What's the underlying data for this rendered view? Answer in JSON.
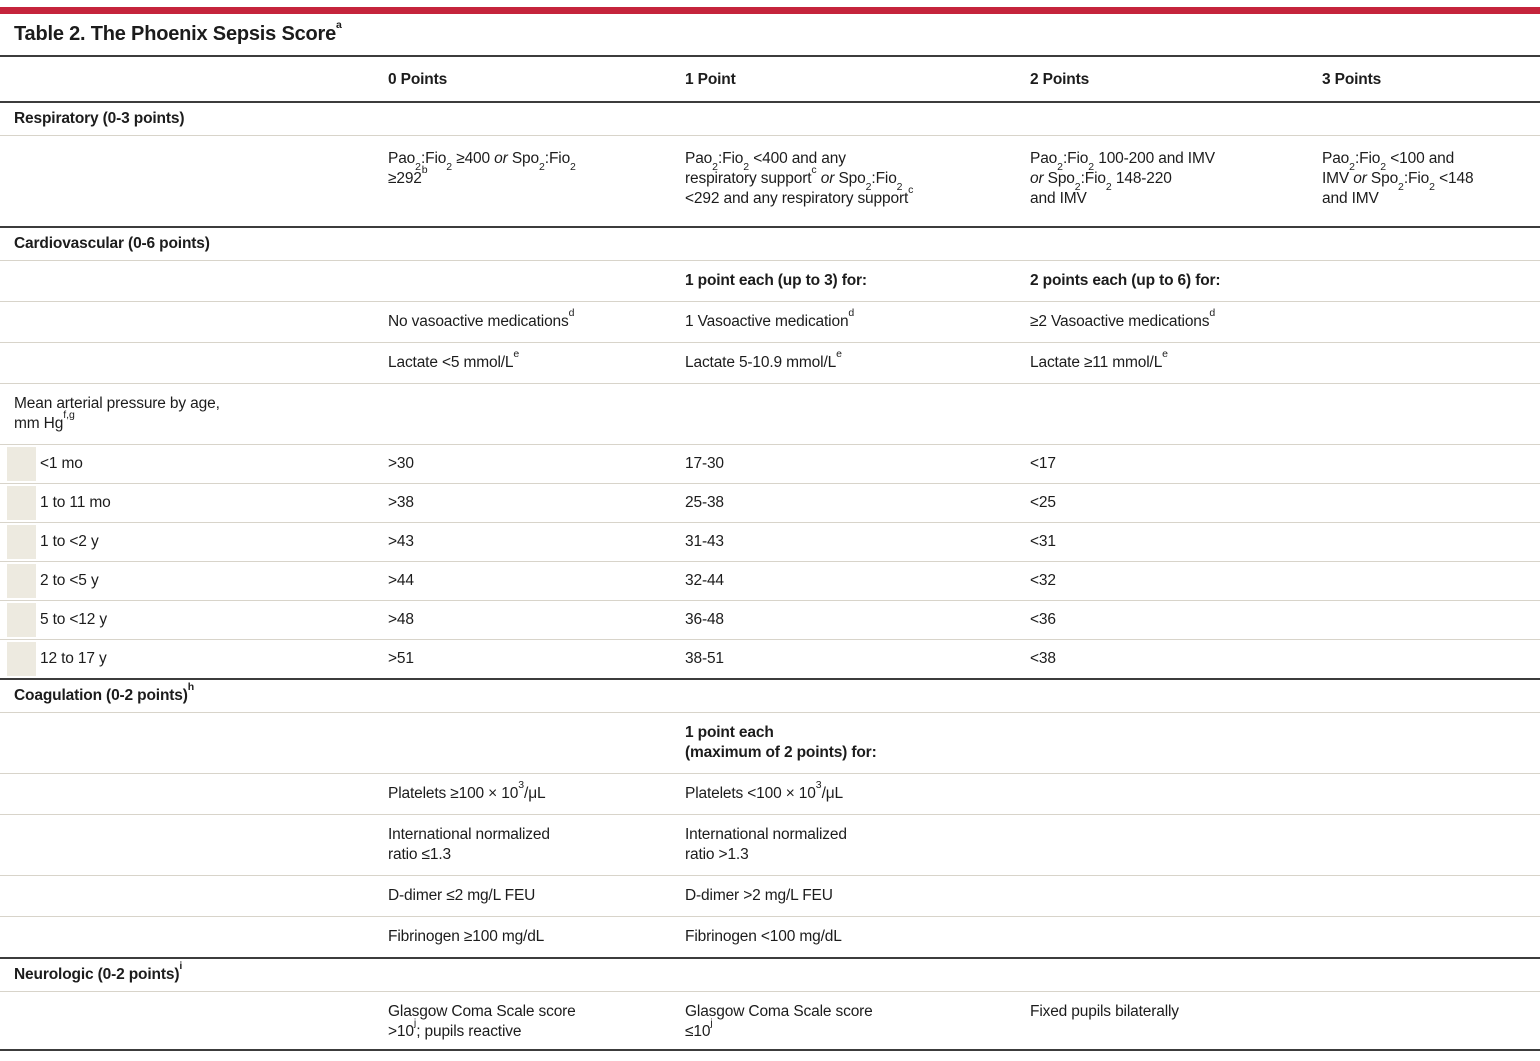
{
  "title": "Table 2. The Phoenix Sepsis Score^a^",
  "colors": {
    "accent_red": "#c5243c",
    "rule_dark": "#3c3c3c",
    "rule_light": "#d8d4ca",
    "indent_beige": "#edeae0",
    "text": "#1c1c1c"
  },
  "table": {
    "columns": [
      "",
      "0 Points",
      "1 Point",
      "2 Points",
      "3 Points"
    ],
    "rows": [
      {
        "label": "Respiratory (0-3 points)"
      },
      {
        "cells": [
          "",
          "Pao~2~:Fio~2~ ≥400 _or_ Spo~2~:Fio~2~|≥292^b^",
          "Pao~2~:Fio~2~ <400 and any|respiratory support^c^ _or_ Spo~2~:Fio~2~|<292 and any respiratory support^c^",
          "Pao~2~:Fio~2~ 100-200 and IMV|_or_ Spo~2~:Fio~2~ 148-220|and IMV",
          "Pao~2~:Fio~2~ <100 and|IMV _or_ Spo~2~:Fio~2~ <148|and IMV"
        ]
      },
      {
        "label": "Cardiovascular (0-6 points)"
      },
      {
        "cells": [
          "",
          "",
          "1 point each (up to 3) for:",
          "2 points each (up to 6) for:",
          ""
        ]
      },
      {
        "cells": [
          "",
          "No vasoactive medications^d^",
          "1 Vasoactive medication^d^",
          "≥2 Vasoactive medications^d^",
          ""
        ]
      },
      {
        "cells": [
          "",
          "Lactate <5 mmol/L^e^",
          "Lactate 5-10.9 mmol/L^e^",
          "Lactate ≥11 mmol/L^e^",
          ""
        ]
      },
      {
        "cells": [
          "Mean arterial pressure by age,|mm Hg^f,g^",
          "",
          "",
          "",
          ""
        ]
      },
      {
        "cells": [
          "<1 mo",
          ">30",
          "17-30",
          "<17",
          ""
        ]
      },
      {
        "cells": [
          "1 to 11 mo",
          ">38",
          "25-38",
          "<25",
          ""
        ]
      },
      {
        "cells": [
          "1 to <2 y",
          ">43",
          "31-43",
          "<31",
          ""
        ]
      },
      {
        "cells": [
          "2 to <5 y",
          ">44",
          "32-44",
          "<32",
          ""
        ]
      },
      {
        "cells": [
          "5 to <12 y",
          ">48",
          "36-48",
          "<36",
          ""
        ]
      },
      {
        "cells": [
          "12 to 17 y",
          ">51",
          "38-51",
          "<38",
          ""
        ]
      },
      {
        "label": "Coagulation (0-2 points)^h^"
      },
      {
        "cells": [
          "",
          "",
          "1 point each|(maximum of 2 points) for:",
          "",
          ""
        ]
      },
      {
        "cells": [
          "",
          "Platelets ≥100 × 10^3^/μL",
          "Platelets <100 × 10^3^/μL",
          "",
          ""
        ]
      },
      {
        "cells": [
          "",
          "International normalized|ratio ≤1.3",
          "International normalized|ratio >1.3",
          "",
          ""
        ]
      },
      {
        "cells": [
          "",
          "D-dimer ≤2 mg/L FEU",
          "D-dimer >2 mg/L FEU",
          "",
          ""
        ]
      },
      {
        "cells": [
          "",
          "Fibrinogen ≥100 mg/dL",
          "Fibrinogen <100 mg/dL",
          "",
          ""
        ]
      },
      {
        "label": "Neurologic (0-2 points)^i^"
      },
      {
        "cells": [
          "",
          "Glasgow Coma Scale score|>10^j^; pupils reactive",
          "Glasgow Coma Scale score|≤10^j^",
          "Fixed pupils bilaterally",
          ""
        ]
      }
    ]
  }
}
